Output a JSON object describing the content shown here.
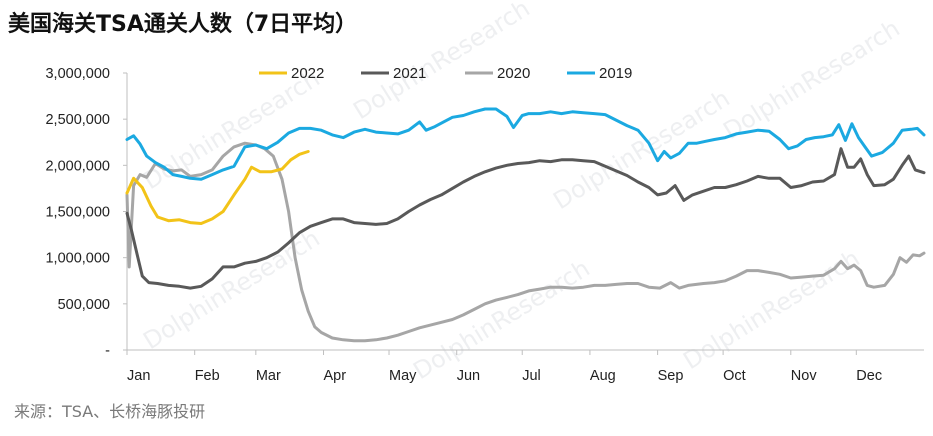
{
  "title": "美国海关TSA通关人数（7日平均）",
  "source": "来源：TSA、长桥海豚投研",
  "watermark": "DolphinResearch",
  "chart_data": {
    "type": "line",
    "title": "美国海关TSA通关人数（7日平均）",
    "xlabel": "",
    "ylabel": "",
    "x_unit": "day of year",
    "x_ticks": [
      {
        "label": "Jan",
        "x": 1
      },
      {
        "label": "Feb",
        "x": 32
      },
      {
        "label": "Mar",
        "x": 60
      },
      {
        "label": "Apr",
        "x": 91
      },
      {
        "label": "May",
        "x": 121
      },
      {
        "label": "Jun",
        "x": 152
      },
      {
        "label": "Jul",
        "x": 182
      },
      {
        "label": "Aug",
        "x": 213
      },
      {
        "label": "Sep",
        "x": 244
      },
      {
        "label": "Oct",
        "x": 274
      },
      {
        "label": "Nov",
        "x": 305
      },
      {
        "label": "Dec",
        "x": 335
      }
    ],
    "xlim": [
      1,
      366
    ],
    "ylim": [
      0,
      3000000
    ],
    "y_ticks": [
      {
        "value": 0,
        "label": "-"
      },
      {
        "value": 500000,
        "label": "500,000"
      },
      {
        "value": 1000000,
        "label": "1,000,000"
      },
      {
        "value": 1500000,
        "label": "1,500,000"
      },
      {
        "value": 2000000,
        "label": "2,000,000"
      },
      {
        "value": 2500000,
        "label": "2,500,000"
      },
      {
        "value": 3000000,
        "label": "3,000,000"
      }
    ],
    "legend_position": "top",
    "grid": false,
    "series": [
      {
        "name": "2022",
        "color": "#f2c318",
        "points": [
          [
            1,
            1700000
          ],
          [
            4,
            1860000
          ],
          [
            8,
            1760000
          ],
          [
            12,
            1560000
          ],
          [
            15,
            1440000
          ],
          [
            20,
            1400000
          ],
          [
            25,
            1410000
          ],
          [
            30,
            1380000
          ],
          [
            35,
            1370000
          ],
          [
            40,
            1420000
          ],
          [
            45,
            1500000
          ],
          [
            50,
            1680000
          ],
          [
            55,
            1850000
          ],
          [
            58,
            1980000
          ],
          [
            62,
            1930000
          ],
          [
            67,
            1930000
          ],
          [
            72,
            1960000
          ],
          [
            76,
            2060000
          ],
          [
            80,
            2120000
          ],
          [
            84,
            2150000
          ]
        ]
      },
      {
        "name": "2021",
        "color": "#595959",
        "points": [
          [
            1,
            1480000
          ],
          [
            3,
            1300000
          ],
          [
            6,
            1000000
          ],
          [
            8,
            800000
          ],
          [
            11,
            730000
          ],
          [
            15,
            720000
          ],
          [
            20,
            700000
          ],
          [
            25,
            690000
          ],
          [
            30,
            670000
          ],
          [
            35,
            690000
          ],
          [
            40,
            770000
          ],
          [
            45,
            900000
          ],
          [
            50,
            900000
          ],
          [
            55,
            940000
          ],
          [
            60,
            960000
          ],
          [
            65,
            1000000
          ],
          [
            70,
            1060000
          ],
          [
            75,
            1160000
          ],
          [
            80,
            1270000
          ],
          [
            85,
            1340000
          ],
          [
            90,
            1380000
          ],
          [
            95,
            1420000
          ],
          [
            100,
            1420000
          ],
          [
            105,
            1380000
          ],
          [
            110,
            1370000
          ],
          [
            115,
            1360000
          ],
          [
            120,
            1370000
          ],
          [
            125,
            1420000
          ],
          [
            130,
            1500000
          ],
          [
            135,
            1570000
          ],
          [
            140,
            1630000
          ],
          [
            145,
            1680000
          ],
          [
            150,
            1750000
          ],
          [
            155,
            1820000
          ],
          [
            160,
            1880000
          ],
          [
            165,
            1930000
          ],
          [
            170,
            1970000
          ],
          [
            175,
            2000000
          ],
          [
            180,
            2020000
          ],
          [
            185,
            2030000
          ],
          [
            190,
            2050000
          ],
          [
            195,
            2040000
          ],
          [
            200,
            2060000
          ],
          [
            205,
            2060000
          ],
          [
            210,
            2050000
          ],
          [
            215,
            2040000
          ],
          [
            220,
            1990000
          ],
          [
            225,
            1940000
          ],
          [
            230,
            1890000
          ],
          [
            235,
            1820000
          ],
          [
            240,
            1760000
          ],
          [
            244,
            1680000
          ],
          [
            248,
            1700000
          ],
          [
            252,
            1780000
          ],
          [
            256,
            1620000
          ],
          [
            260,
            1680000
          ],
          [
            265,
            1720000
          ],
          [
            270,
            1760000
          ],
          [
            275,
            1760000
          ],
          [
            280,
            1790000
          ],
          [
            285,
            1830000
          ],
          [
            290,
            1880000
          ],
          [
            295,
            1860000
          ],
          [
            300,
            1860000
          ],
          [
            305,
            1760000
          ],
          [
            310,
            1780000
          ],
          [
            315,
            1820000
          ],
          [
            320,
            1830000
          ],
          [
            325,
            1900000
          ],
          [
            328,
            2180000
          ],
          [
            331,
            1980000
          ],
          [
            334,
            1980000
          ],
          [
            337,
            2070000
          ],
          [
            340,
            1900000
          ],
          [
            343,
            1780000
          ],
          [
            348,
            1790000
          ],
          [
            352,
            1850000
          ],
          [
            356,
            2000000
          ],
          [
            359,
            2100000
          ],
          [
            362,
            1950000
          ],
          [
            366,
            1920000
          ]
        ]
      },
      {
        "name": "2020",
        "color": "#a6a6a6",
        "points": [
          [
            1,
            1680000
          ],
          [
            2,
            900000
          ],
          [
            4,
            1780000
          ],
          [
            7,
            1900000
          ],
          [
            10,
            1870000
          ],
          [
            14,
            2020000
          ],
          [
            18,
            1960000
          ],
          [
            22,
            1940000
          ],
          [
            26,
            1950000
          ],
          [
            30,
            1880000
          ],
          [
            35,
            1900000
          ],
          [
            40,
            1950000
          ],
          [
            45,
            2100000
          ],
          [
            50,
            2200000
          ],
          [
            55,
            2240000
          ],
          [
            60,
            2220000
          ],
          [
            64,
            2180000
          ],
          [
            68,
            2100000
          ],
          [
            72,
            1850000
          ],
          [
            75,
            1500000
          ],
          [
            78,
            1000000
          ],
          [
            81,
            650000
          ],
          [
            84,
            420000
          ],
          [
            87,
            250000
          ],
          [
            90,
            190000
          ],
          [
            95,
            130000
          ],
          [
            100,
            110000
          ],
          [
            105,
            100000
          ],
          [
            110,
            100000
          ],
          [
            115,
            110000
          ],
          [
            120,
            130000
          ],
          [
            125,
            160000
          ],
          [
            130,
            200000
          ],
          [
            135,
            240000
          ],
          [
            140,
            270000
          ],
          [
            145,
            300000
          ],
          [
            150,
            330000
          ],
          [
            155,
            380000
          ],
          [
            160,
            440000
          ],
          [
            165,
            500000
          ],
          [
            170,
            540000
          ],
          [
            175,
            570000
          ],
          [
            180,
            600000
          ],
          [
            185,
            640000
          ],
          [
            190,
            660000
          ],
          [
            195,
            680000
          ],
          [
            200,
            680000
          ],
          [
            205,
            670000
          ],
          [
            210,
            680000
          ],
          [
            215,
            700000
          ],
          [
            220,
            700000
          ],
          [
            225,
            710000
          ],
          [
            230,
            720000
          ],
          [
            235,
            720000
          ],
          [
            240,
            680000
          ],
          [
            245,
            670000
          ],
          [
            250,
            730000
          ],
          [
            254,
            670000
          ],
          [
            258,
            700000
          ],
          [
            265,
            720000
          ],
          [
            270,
            730000
          ],
          [
            275,
            750000
          ],
          [
            280,
            800000
          ],
          [
            285,
            860000
          ],
          [
            290,
            860000
          ],
          [
            295,
            840000
          ],
          [
            300,
            820000
          ],
          [
            305,
            780000
          ],
          [
            310,
            790000
          ],
          [
            315,
            800000
          ],
          [
            320,
            810000
          ],
          [
            325,
            880000
          ],
          [
            328,
            960000
          ],
          [
            331,
            880000
          ],
          [
            334,
            920000
          ],
          [
            337,
            860000
          ],
          [
            340,
            700000
          ],
          [
            343,
            680000
          ],
          [
            348,
            700000
          ],
          [
            352,
            820000
          ],
          [
            355,
            1000000
          ],
          [
            358,
            950000
          ],
          [
            361,
            1030000
          ],
          [
            364,
            1020000
          ],
          [
            366,
            1050000
          ]
        ]
      },
      {
        "name": "2019",
        "color": "#1ba9e1",
        "points": [
          [
            1,
            2280000
          ],
          [
            4,
            2320000
          ],
          [
            7,
            2230000
          ],
          [
            10,
            2100000
          ],
          [
            14,
            2030000
          ],
          [
            18,
            1980000
          ],
          [
            22,
            1900000
          ],
          [
            26,
            1880000
          ],
          [
            30,
            1860000
          ],
          [
            35,
            1850000
          ],
          [
            40,
            1900000
          ],
          [
            45,
            1950000
          ],
          [
            50,
            1990000
          ],
          [
            55,
            2200000
          ],
          [
            60,
            2220000
          ],
          [
            65,
            2180000
          ],
          [
            70,
            2250000
          ],
          [
            75,
            2350000
          ],
          [
            80,
            2400000
          ],
          [
            85,
            2400000
          ],
          [
            90,
            2380000
          ],
          [
            95,
            2330000
          ],
          [
            100,
            2300000
          ],
          [
            105,
            2360000
          ],
          [
            110,
            2390000
          ],
          [
            115,
            2360000
          ],
          [
            120,
            2350000
          ],
          [
            125,
            2340000
          ],
          [
            130,
            2380000
          ],
          [
            135,
            2470000
          ],
          [
            138,
            2380000
          ],
          [
            142,
            2420000
          ],
          [
            146,
            2470000
          ],
          [
            150,
            2520000
          ],
          [
            155,
            2540000
          ],
          [
            160,
            2580000
          ],
          [
            165,
            2610000
          ],
          [
            170,
            2610000
          ],
          [
            175,
            2530000
          ],
          [
            178,
            2410000
          ],
          [
            182,
            2540000
          ],
          [
            185,
            2560000
          ],
          [
            190,
            2560000
          ],
          [
            195,
            2580000
          ],
          [
            200,
            2560000
          ],
          [
            205,
            2580000
          ],
          [
            210,
            2570000
          ],
          [
            215,
            2560000
          ],
          [
            220,
            2550000
          ],
          [
            225,
            2490000
          ],
          [
            230,
            2430000
          ],
          [
            235,
            2380000
          ],
          [
            240,
            2240000
          ],
          [
            244,
            2050000
          ],
          [
            247,
            2150000
          ],
          [
            250,
            2080000
          ],
          [
            254,
            2130000
          ],
          [
            258,
            2240000
          ],
          [
            262,
            2240000
          ],
          [
            266,
            2260000
          ],
          [
            270,
            2280000
          ],
          [
            275,
            2300000
          ],
          [
            280,
            2340000
          ],
          [
            285,
            2360000
          ],
          [
            290,
            2380000
          ],
          [
            295,
            2370000
          ],
          [
            300,
            2280000
          ],
          [
            304,
            2180000
          ],
          [
            308,
            2210000
          ],
          [
            312,
            2280000
          ],
          [
            316,
            2300000
          ],
          [
            320,
            2310000
          ],
          [
            324,
            2330000
          ],
          [
            327,
            2440000
          ],
          [
            330,
            2270000
          ],
          [
            333,
            2450000
          ],
          [
            336,
            2300000
          ],
          [
            339,
            2200000
          ],
          [
            342,
            2100000
          ],
          [
            347,
            2140000
          ],
          [
            352,
            2240000
          ],
          [
            356,
            2380000
          ],
          [
            360,
            2390000
          ],
          [
            363,
            2400000
          ],
          [
            366,
            2330000
          ]
        ]
      }
    ]
  }
}
